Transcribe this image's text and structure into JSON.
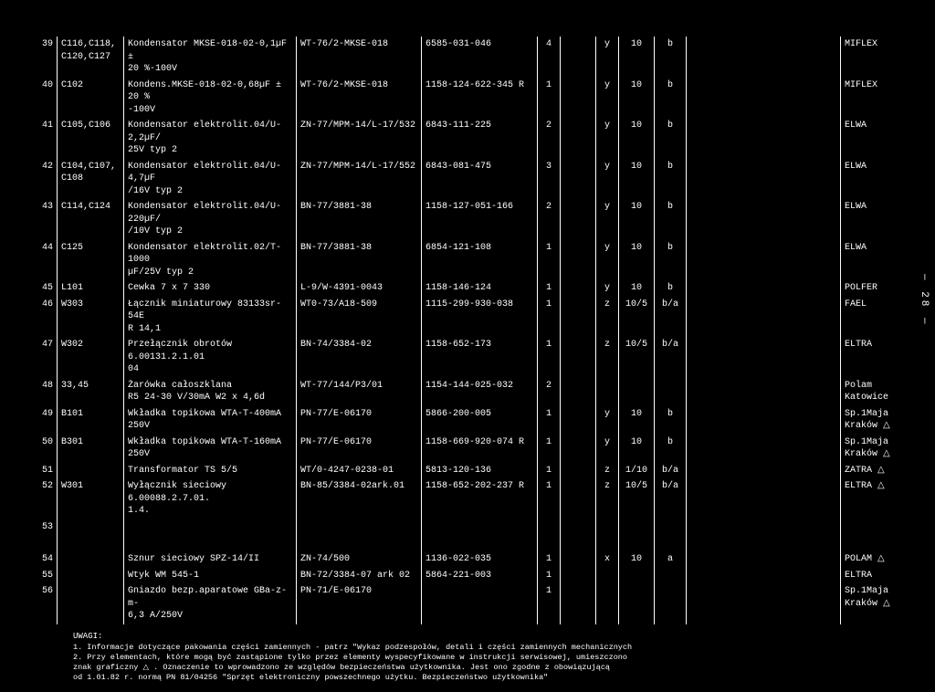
{
  "rows": [
    {
      "n": "39",
      "ref": "C116,C118,\nC120,C127",
      "desc": "Kondensator MKSE-018-02-0,1µF ±\n20 %-100V",
      "col3": "WT-76/2-MKSE-018",
      "col4": "6585-031-046",
      "c5": "4",
      "c6": "",
      "c7": "y",
      "c8": "10",
      "c9": "b",
      "c10": "",
      "c11": "MIFLEX"
    },
    {
      "n": "40",
      "ref": "C102",
      "desc": "Kondens.MKSE-018-02-0,68µF ± 20 %\n-100V",
      "col3": "WT-76/2-MKSE-018",
      "col4": "1158-124-622-345 R",
      "c5": "1",
      "c6": "",
      "c7": "y",
      "c8": "10",
      "c9": "b",
      "c10": "",
      "c11": "MIFLEX"
    },
    {
      "n": "41",
      "ref": "C105,C106",
      "desc": "Kondensator elektrolit.04/U-2,2µF/\n25V typ 2",
      "col3": "ZN-77/MPM-14/L-17/532",
      "col4": "6843-111-225",
      "c5": "2",
      "c6": "",
      "c7": "y",
      "c8": "10",
      "c9": "b",
      "c10": "",
      "c11": "ELWA"
    },
    {
      "n": "42",
      "ref": "C104,C107,\nC108",
      "desc": "Kondensator elektrolit.04/U-4,7µF\n/16V typ 2",
      "col3": "ZN-77/MPM-14/L-17/552",
      "col4": "6843-081-475",
      "c5": "3",
      "c6": "",
      "c7": "y",
      "c8": "10",
      "c9": "b",
      "c10": "",
      "c11": "ELWA"
    },
    {
      "n": "43",
      "ref": "C114,C124",
      "desc": "Kondensator elektrolit.04/U-220µF/\n/10V typ 2",
      "col3": "BN-77/3881-38",
      "col4": "1158-127-051-166",
      "c5": "2",
      "c6": "",
      "c7": "y",
      "c8": "10",
      "c9": "b",
      "c10": "",
      "c11": "ELWA"
    },
    {
      "n": "44",
      "ref": "C125",
      "desc": "Kondensator elektrolit.02/T-1000\nµF/25V typ 2",
      "col3": "BN-77/3881-38",
      "col4": "6854-121-108",
      "c5": "1",
      "c6": "",
      "c7": "y",
      "c8": "10",
      "c9": "b",
      "c10": "",
      "c11": "ELWA"
    },
    {
      "n": "45",
      "ref": "L101",
      "desc": "Cewka 7 x 7 330",
      "col3": "L-9/W-4391-0043",
      "col4": "1158-146-124",
      "c5": "1",
      "c6": "",
      "c7": "y",
      "c8": "10",
      "c9": "b",
      "c10": "",
      "c11": "POLFER"
    },
    {
      "n": "46",
      "ref": "W303",
      "desc": "Łącznik miniaturowy 83133sr-54E\nR 14,1",
      "col3": "WT0-73/A18-509",
      "col4": "1115-299-930-038",
      "c5": "1",
      "c6": "",
      "c7": "z",
      "c8": "10/5",
      "c9": "b/a",
      "c10": "",
      "c11": "FAEL"
    },
    {
      "n": "47",
      "ref": "W302",
      "desc": "Przełącznik obrotów 6.00131.2.1.01\n04",
      "col3": "BN-74/3384-02",
      "col4": "1158-652-173",
      "c5": "1",
      "c6": "",
      "c7": "z",
      "c8": "10/5",
      "c9": "b/a",
      "c10": "",
      "c11": "ELTRA"
    },
    {
      "n": "48",
      "ref": "33,45",
      "desc": "Żarówka całoszklana\nR5 24-30 V/30mA W2 x 4,6d",
      "col3": "WT-77/144/P3/01",
      "col4": "1154-144-025-032",
      "c5": "2",
      "c6": "",
      "c7": "",
      "c8": "",
      "c9": "",
      "c10": "",
      "c11": "Polam\nKatowice"
    },
    {
      "n": "49",
      "ref": "B101",
      "desc": "Wkładka topikowa WTA-T-400mA 250V",
      "col3": "PN-77/E-06170",
      "col4": "5866-200-005",
      "c5": "1",
      "c6": "",
      "c7": "y",
      "c8": "10",
      "c9": "b",
      "c10": "",
      "c11": "Sp.1Maja\nKraków △"
    },
    {
      "n": "50",
      "ref": "B301",
      "desc": "Wkładka topikowa WTA-T-160mA 250V",
      "col3": "PN-77/E-06170",
      "col4": "1158-669-920-074 R",
      "c5": "1",
      "c6": "",
      "c7": "y",
      "c8": "10",
      "c9": "b",
      "c10": "",
      "c11": "Sp.1Maja\nKraków △"
    },
    {
      "n": "51",
      "ref": "",
      "desc": "Transformator TS 5/5",
      "col3": "WT/0-4247-0238-01",
      "col4": "5813-120-136",
      "c5": "1",
      "c6": "",
      "c7": "z",
      "c8": "1/10",
      "c9": "b/a",
      "c10": "",
      "c11": "ZATRA △"
    },
    {
      "n": "52",
      "ref": "W301",
      "desc": "Wyłącznik sieciowy 6.00088.2.7.01.\n1.4.",
      "col3": "BN-85/3384-02ark.01",
      "col4": "1158-652-202-237 R",
      "c5": "1",
      "c6": "",
      "c7": "z",
      "c8": "10/5",
      "c9": "b/a",
      "c10": "",
      "c11": "ELTRA △"
    },
    {
      "n": "53",
      "ref": "",
      "desc": "",
      "col3": "",
      "col4": "",
      "c5": "",
      "c6": "",
      "c7": "",
      "c8": "",
      "c9": "",
      "c10": "",
      "c11": ""
    },
    {
      "spacer": true
    },
    {
      "n": "54",
      "ref": "",
      "desc": "Sznur sieciowy SPZ-14/II",
      "col3": "ZN-74/500",
      "col4": "1136-022-035",
      "c5": "1",
      "c6": "",
      "c7": "x",
      "c8": "10",
      "c9": "a",
      "c10": "",
      "c11": "POLAM △"
    },
    {
      "n": "55",
      "ref": "",
      "desc": "Wtyk WM 545-1",
      "col3": "BN-72/3384-07 ark 02",
      "col4": "5864-221-003",
      "c5": "1",
      "c6": "",
      "c7": "",
      "c8": "",
      "c9": "",
      "c10": "",
      "c11": "ELTRA"
    },
    {
      "n": "56",
      "ref": "",
      "desc": "Gniazdo bezp.aparatowe GBa-z-m-\n6,3 A/250V",
      "col3": "PN-71/E-06170",
      "col4": "",
      "c5": "1",
      "c6": "",
      "c7": "",
      "c8": "",
      "c9": "",
      "c10": "",
      "c11": "Sp.1Maja\nKraków △"
    }
  ],
  "notes": {
    "header": "UWAGI:",
    "lines": [
      "1. Informacje dotyczące pakowania części zamiennych - patrz \"Wykaz podzespołów, detali i części zamiennych mechanicznych",
      "2. Przy elementach, które mogą być zastąpione tylko przez elementy wyspecyfikowane w instrukcji serwisowej, umieszczono",
      "   znak graficzny △ . Oznaczenie to wprowadzono ze względów bezpieczeństwa użytkownika. Jest ono zgodne z obowiązującą",
      "   od 1.01.82 r. normą PN 81/04256 \"Sprzęt elektroniczny powszechnego użytku. Bezpieczeństwo użytkownika\""
    ]
  },
  "pagenum": "— 28 —",
  "style": {
    "bg": "#000000",
    "fg": "#ffffff",
    "font": "Courier New",
    "fontsize_pt": 10
  }
}
